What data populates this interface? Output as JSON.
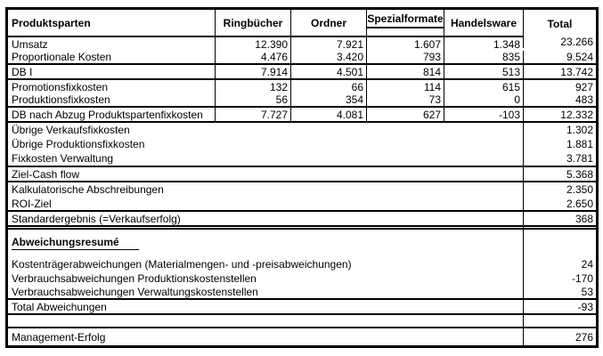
{
  "header": {
    "label_column": "Produktsparten",
    "columns": [
      "Ringbücher",
      "Ordner",
      "Spezialformate",
      "Handelsware",
      "Total"
    ]
  },
  "product_rows": [
    {
      "label": "Umsatz",
      "values": [
        "12.390",
        "7.921",
        "1.607",
        "1.348",
        "23.266"
      ]
    },
    {
      "label": "Proportionale Kosten",
      "values": [
        "4.476",
        "3.420",
        "793",
        "835",
        "9.524"
      ]
    },
    {
      "label": "DB I",
      "values": [
        "7.914",
        "4.501",
        "814",
        "513",
        "13.742"
      ]
    },
    {
      "label": "Promotionsfixkosten",
      "values": [
        "132",
        "66",
        "114",
        "615",
        "927"
      ]
    },
    {
      "label": "Produktionsfixkosten",
      "values": [
        "56",
        "354",
        "73",
        "0",
        "483"
      ]
    },
    {
      "label": "DB nach Abzug Produktspartenfixkosten",
      "values": [
        "7.727",
        "4.081",
        "627",
        "-103",
        "12.332"
      ]
    }
  ],
  "summary_rows": [
    {
      "label": "Übrige Verkaufsfixkosten",
      "total": "1.302"
    },
    {
      "label": "Übrige Produktionsfixkosten",
      "total": "1.881"
    },
    {
      "label": "Fixkosten Verwaltung",
      "total": "3.781"
    },
    {
      "label": "Ziel-Cash flow",
      "total": "5.368"
    },
    {
      "label": "Kalkulatorische Abschreibungen",
      "total": "2.350"
    },
    {
      "label": "ROI-Ziel",
      "total": "2.650"
    },
    {
      "label": "Standardergebnis (=Verkaufserfolg)",
      "total": "368"
    }
  ],
  "deviations": {
    "heading": "Abweichungsresumé",
    "rows": [
      {
        "label": "Kostenträgerabweichungen (Materialmengen- und -preisabweichungen)",
        "total": "24"
      },
      {
        "label": "Verbrauchsabweichungen Produktionskostenstellen",
        "total": "-170"
      },
      {
        "label": "Verbrauchsabweichungen Verwaltungskostenstellen",
        "total": "53"
      },
      {
        "label": "Total Abweichungen",
        "total": "-93"
      }
    ]
  },
  "result_row": {
    "label": "Management-Erfolg",
    "total": "276"
  },
  "colors": {
    "border": "#000000",
    "text": "#000000",
    "background": "#ffffff"
  }
}
